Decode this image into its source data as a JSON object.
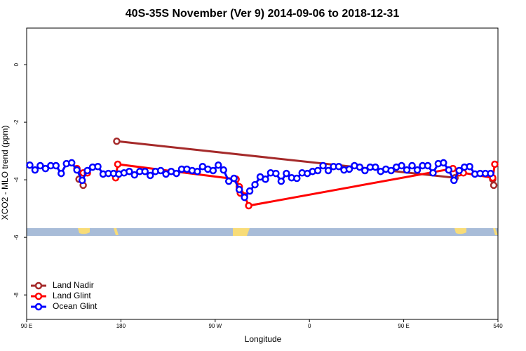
{
  "chart_data": {
    "type": "line",
    "title": "40S-35S November (Ver 9)   2014-09-06 to 2018-12-31",
    "x_label": "Longitude",
    "y_label": "XCO2 - MLO trend (ppm)",
    "xlim": [
      90,
      540
    ],
    "ylim": [
      1.27,
      -8.85
    ],
    "xticks": [
      {
        "value": 90,
        "label": "90 E"
      },
      180,
      {
        "value": 270,
        "label": "90 W"
      },
      {
        "value": 360,
        "label": "0"
      },
      {
        "value": 450,
        "label": "90 E"
      },
      540
    ],
    "yticks": [
      0,
      -2,
      -4,
      -6,
      -8
    ],
    "legend": "bottom-left",
    "series": [
      {
        "name": "Land Nadir",
        "color": "#a52a2a",
        "x": [
          140,
          144,
          175,
          176,
          499,
          503,
          535,
          536
        ],
        "values": [
          -3.98,
          -4.19,
          null,
          -2.66,
          -3.93,
          null,
          -3.98,
          -4.19
        ]
      },
      {
        "name": "Land Glint",
        "color": "#ff0000",
        "x": [
          138,
          144,
          148,
          170,
          175,
          177,
          290,
          293,
          294,
          298,
          302,
          497,
          503,
          507,
          535,
          537
        ],
        "values": [
          -3.61,
          -3.76,
          -3.76,
          null,
          -3.93,
          -3.46,
          -3.98,
          -4.24,
          -4.46,
          -4.56,
          -4.9,
          -3.61,
          -3.76,
          -3.76,
          -3.93,
          -3.46
        ]
      },
      {
        "name": "Ocean Glint",
        "color": "#0000ff",
        "x": [
          93,
          98,
          103,
          108,
          113,
          118,
          123,
          128,
          133,
          138,
          143,
          148,
          153,
          158,
          163,
          168,
          173,
          178,
          183,
          188,
          193,
          198,
          203,
          208,
          213,
          218,
          223,
          228,
          233,
          238,
          243,
          248,
          253,
          258,
          263,
          268,
          273,
          278,
          283,
          288,
          293,
          298,
          303,
          308,
          313,
          318,
          323,
          328,
          333,
          338,
          343,
          348,
          353,
          358,
          363,
          368,
          373,
          378,
          383,
          388,
          393,
          398,
          403,
          408,
          413,
          418,
          423,
          428,
          433,
          438,
          443,
          448,
          453,
          458,
          463,
          468,
          473,
          478,
          483,
          488,
          493,
          498,
          503,
          508,
          513,
          518,
          523,
          528,
          533
        ],
        "values": [
          -3.49,
          -3.66,
          -3.51,
          -3.61,
          -3.51,
          -3.51,
          -3.78,
          -3.44,
          -3.41,
          -3.66,
          -4.02,
          -3.68,
          -3.56,
          -3.54,
          -3.8,
          -3.78,
          -3.78,
          -3.8,
          -3.76,
          -3.71,
          -3.83,
          -3.71,
          -3.71,
          -3.85,
          -3.71,
          -3.68,
          -3.8,
          -3.71,
          -3.78,
          -3.63,
          -3.63,
          -3.68,
          -3.71,
          -3.54,
          -3.63,
          -3.68,
          -3.49,
          -3.66,
          -4.05,
          -3.95,
          -4.34,
          -4.61,
          -4.39,
          -4.17,
          -3.9,
          -3.98,
          -3.76,
          -3.78,
          -4.05,
          -3.78,
          -3.93,
          -3.95,
          -3.76,
          -3.78,
          -3.71,
          -3.68,
          -3.51,
          -3.68,
          -3.54,
          -3.54,
          -3.66,
          -3.63,
          -3.51,
          -3.56,
          -3.68,
          -3.56,
          -3.56,
          -3.71,
          -3.63,
          -3.68,
          -3.56,
          -3.51,
          -3.66,
          -3.51,
          -3.66,
          -3.51,
          -3.51,
          -3.76,
          -3.44,
          -3.41,
          -3.66,
          -4.02,
          -3.68,
          -3.56,
          -3.54,
          -3.8,
          -3.78,
          -3.78,
          -3.78
        ]
      }
    ]
  }
}
